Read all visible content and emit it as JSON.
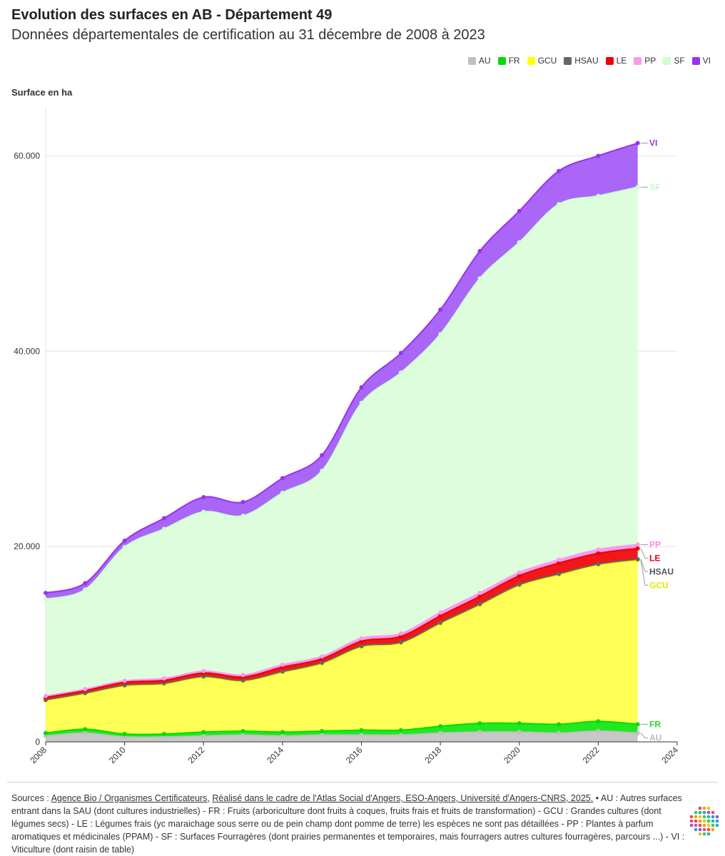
{
  "header": {
    "title": "Evolution des surfaces en AB - Département 49",
    "subtitle": "Données départementales de certification au 31 décembre de 2008 à 2023"
  },
  "chart_data": {
    "type": "area",
    "stacked": true,
    "title": "Evolution des surfaces en AB - Département 49",
    "ylabel": "Surface en ha",
    "xlabel": "",
    "x": [
      2008,
      2009,
      2010,
      2011,
      2012,
      2013,
      2014,
      2015,
      2016,
      2017,
      2018,
      2019,
      2020,
      2021,
      2022,
      2023
    ],
    "xlim": [
      2008,
      2024
    ],
    "ylim": [
      0,
      65000
    ],
    "x_ticks": [
      2008,
      2010,
      2012,
      2014,
      2016,
      2018,
      2020,
      2022,
      2024
    ],
    "y_ticks": [
      0,
      20000,
      40000,
      60000
    ],
    "y_tick_labels": [
      "0",
      "20.000",
      "40.000",
      "60.000"
    ],
    "grid": true,
    "legend_position": "top-right",
    "series": [
      {
        "name": "AU",
        "color": "#c8c8c8",
        "line_color": "#c0c0c0",
        "values": [
          600,
          900,
          500,
          500,
          600,
          700,
          600,
          700,
          700,
          700,
          900,
          1000,
          1000,
          900,
          1100,
          900
        ]
      },
      {
        "name": "FR",
        "color": "#22e822",
        "line_color": "#00dd00",
        "values": [
          300,
          400,
          300,
          300,
          400,
          400,
          400,
          400,
          500,
          500,
          700,
          900,
          900,
          900,
          1000,
          900
        ]
      },
      {
        "name": "GCU",
        "color": "#ffff55",
        "line_color": "#ffff00",
        "values": [
          3300,
          3600,
          4900,
          5100,
          5600,
          5100,
          6100,
          6900,
          8500,
          8900,
          10500,
          12100,
          14100,
          15300,
          16000,
          16800
        ]
      },
      {
        "name": "HSAU",
        "color": "#666666",
        "line_color": "#666666",
        "values": [
          100,
          100,
          100,
          100,
          100,
          100,
          100,
          100,
          100,
          100,
          100,
          100,
          100,
          100,
          100,
          100
        ]
      },
      {
        "name": "LE",
        "color": "#f01818",
        "line_color": "#ee0000",
        "values": [
          250,
          250,
          300,
          300,
          350,
          350,
          450,
          400,
          500,
          600,
          700,
          800,
          900,
          1100,
          1100,
          1100
        ]
      },
      {
        "name": "PP",
        "color": "#ff9cef",
        "line_color": "#ff99ee",
        "values": [
          150,
          150,
          150,
          200,
          200,
          200,
          250,
          250,
          300,
          300,
          350,
          350,
          350,
          350,
          400,
          400
        ]
      },
      {
        "name": "SF",
        "color": "#ddfddd",
        "line_color": "#ccffcc",
        "values": [
          9900,
          10200,
          13700,
          15300,
          16300,
          16300,
          17600,
          19000,
          24100,
          26700,
          28500,
          32200,
          33800,
          36400,
          36200,
          36600
        ]
      },
      {
        "name": "VI",
        "color": "#a966f7",
        "line_color": "#9933ee",
        "values": [
          650,
          650,
          650,
          1100,
          1500,
          1400,
          1500,
          1600,
          1600,
          2000,
          2500,
          2800,
          3200,
          3400,
          4100,
          4500
        ]
      }
    ],
    "end_labels": [
      "VI",
      "SF",
      "PP",
      "LE",
      "HSAU",
      "GCU",
      "FR",
      "AU"
    ]
  },
  "footer": {
    "sources_label": "Sources : ",
    "source_link_1": "Agence Bio / Organismes Certificateurs,",
    "source_link_2": "Réalisé dans le cadre de l'Atlas Social d'Angers, ESO-Angers, Université d'Angers-CNRS, 2025.",
    "notes": " • AU : Autres surfaces entrant dans la SAU (dont cultures industrielles) - FR : Fruits (arboriculture dont fruits à coques, fruits frais et fruits de transformation) - GCU : Grandes cultures (dont légumes secs) - LE : Légumes frais (yc maraichage sous serre ou de pein champ dont pomme de terre) les espèces ne sont pas détaillées - PP : Plantes à parfum aromatiques et médicinales (PPAM) - SF : Surfaces Fourragères (dont prairies permanentes et temporaires, mais fourragers autres cultures fourragères, parcours ...) - VI : Viticulture (dont raisin de table)"
  }
}
